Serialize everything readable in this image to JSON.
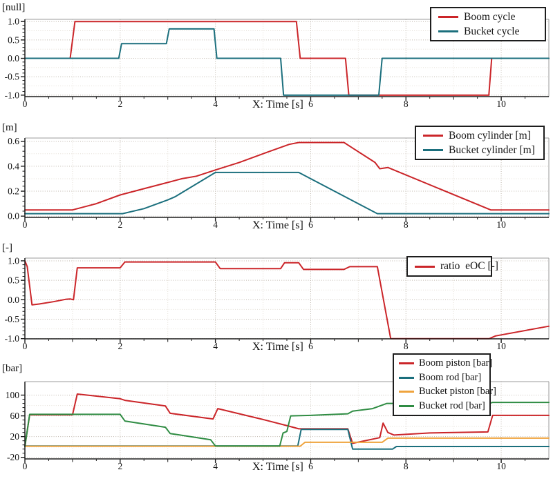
{
  "colors": {
    "red": "#cb2529",
    "teal": "#1b6f7d",
    "orange": "#efa33d",
    "green": "#2f8c43",
    "grid_major": "#c0b8ae",
    "grid_minor": "#e5e0d8",
    "frame": "#9b9b9b",
    "axis": "#1c1c1c",
    "tick_text": "#111111"
  },
  "chart_data": [
    {
      "type": "line",
      "title": "",
      "ylabel": "[null]",
      "xlabel": "X: Time [s]",
      "xlim": [
        0,
        11
      ],
      "ylim": [
        -1,
        1
      ],
      "xticks": [
        0,
        2,
        4,
        6,
        8,
        10
      ],
      "yticks": [
        -1,
        -0.5,
        0,
        0.5,
        1
      ],
      "grid": true,
      "legend_position": "top-right",
      "series": [
        {
          "name": "Boom cycle",
          "color": "#cb2529",
          "points": [
            [
              0,
              0
            ],
            [
              0.95,
              0
            ],
            [
              1.05,
              1
            ],
            [
              5.7,
              1
            ],
            [
              5.78,
              0
            ],
            [
              6.73,
              0
            ],
            [
              6.8,
              -1
            ],
            [
              9.74,
              -1
            ],
            [
              9.8,
              0
            ],
            [
              11,
              0
            ]
          ]
        },
        {
          "name": "Bucket cycle",
          "color": "#1b6f7d",
          "points": [
            [
              0,
              0
            ],
            [
              1.97,
              0
            ],
            [
              2.03,
              0.4
            ],
            [
              2.97,
              0.4
            ],
            [
              3.03,
              0.8
            ],
            [
              3.97,
              0.8
            ],
            [
              4.03,
              0
            ],
            [
              5.37,
              0
            ],
            [
              5.43,
              -1
            ],
            [
              7.43,
              -1
            ],
            [
              7.5,
              0
            ],
            [
              11,
              0
            ]
          ]
        }
      ]
    },
    {
      "type": "line",
      "title": "",
      "ylabel": "[m]",
      "xlabel": "X: Time [s]",
      "xlim": [
        0,
        11
      ],
      "ylim": [
        0,
        0.6
      ],
      "xticks": [
        0,
        2,
        4,
        6,
        8,
        10
      ],
      "yticks": [
        0,
        0.2,
        0.4,
        0.6
      ],
      "grid": true,
      "legend_position": "top-right",
      "series": [
        {
          "name": "Boom cylinder [m]",
          "color": "#cb2529",
          "points": [
            [
              0,
              0.05
            ],
            [
              1,
              0.05
            ],
            [
              1.5,
              0.1
            ],
            [
              2,
              0.17
            ],
            [
              2.5,
              0.22
            ],
            [
              3,
              0.27
            ],
            [
              3.3,
              0.3
            ],
            [
              3.6,
              0.32
            ],
            [
              4,
              0.37
            ],
            [
              4.5,
              0.43
            ],
            [
              5,
              0.5
            ],
            [
              5.55,
              0.575
            ],
            [
              5.75,
              0.59
            ],
            [
              6.7,
              0.59
            ],
            [
              7.35,
              0.43
            ],
            [
              7.45,
              0.38
            ],
            [
              7.62,
              0.39
            ],
            [
              9.78,
              0.05
            ],
            [
              11,
              0.05
            ]
          ]
        },
        {
          "name": "Bucket cylinder [m]",
          "color": "#1b6f7d",
          "points": [
            [
              0,
              0.02
            ],
            [
              2.05,
              0.02
            ],
            [
              2.5,
              0.06
            ],
            [
              3,
              0.13
            ],
            [
              3.15,
              0.155
            ],
            [
              4,
              0.35
            ],
            [
              5.75,
              0.35
            ],
            [
              7.4,
              0.02
            ],
            [
              11,
              0.02
            ]
          ]
        }
      ]
    },
    {
      "type": "line",
      "title": "",
      "ylabel": "[-]",
      "xlabel": "X: Time [s]",
      "xlim": [
        0,
        11
      ],
      "ylim": [
        -1,
        1
      ],
      "xticks": [
        0,
        2,
        4,
        6,
        8,
        10
      ],
      "yticks": [
        -1,
        -0.5,
        0,
        0.5,
        1
      ],
      "grid": true,
      "legend_position": "top-right",
      "series": [
        {
          "name": "ratio  eOC [-]",
          "color": "#cb2529",
          "points": [
            [
              0,
              1
            ],
            [
              0.05,
              0.85
            ],
            [
              0.15,
              -0.13
            ],
            [
              0.3,
              -0.11
            ],
            [
              0.6,
              -0.05
            ],
            [
              0.85,
              0.01
            ],
            [
              0.95,
              0.02
            ],
            [
              1.02,
              0
            ],
            [
              1.1,
              0.82
            ],
            [
              2,
              0.82
            ],
            [
              2.1,
              0.97
            ],
            [
              4,
              0.97
            ],
            [
              4.1,
              0.8
            ],
            [
              5.37,
              0.8
            ],
            [
              5.45,
              0.95
            ],
            [
              5.75,
              0.95
            ],
            [
              5.85,
              0.78
            ],
            [
              6.7,
              0.78
            ],
            [
              6.82,
              0.85
            ],
            [
              7.4,
              0.85
            ],
            [
              7.68,
              -1
            ],
            [
              9.75,
              -1
            ],
            [
              9.88,
              -0.93
            ],
            [
              11,
              -0.68
            ]
          ]
        }
      ]
    },
    {
      "type": "line",
      "title": "",
      "ylabel": "[bar]",
      "xlabel": "X: Time [s]",
      "xlim": [
        0,
        11
      ],
      "ylim": [
        -20,
        110
      ],
      "xticks": [
        0,
        2,
        4,
        6,
        8,
        10
      ],
      "yticks": [
        -20,
        20,
        60,
        100
      ],
      "grid": true,
      "legend_position": "top-right",
      "series": [
        {
          "name": "Boom piston [bar]",
          "color": "#cb2529",
          "points": [
            [
              0,
              1
            ],
            [
              0.1,
              62
            ],
            [
              1,
              62
            ],
            [
              1.1,
              102
            ],
            [
              2,
              93
            ],
            [
              2.1,
              90
            ],
            [
              2.95,
              79
            ],
            [
              3.05,
              65
            ],
            [
              3.95,
              54
            ],
            [
              4.05,
              74
            ],
            [
              5,
              53
            ],
            [
              5.55,
              40
            ],
            [
              5.75,
              35
            ],
            [
              6.78,
              35
            ],
            [
              6.88,
              7
            ],
            [
              7.45,
              18
            ],
            [
              7.52,
              46
            ],
            [
              7.62,
              28
            ],
            [
              7.75,
              23
            ],
            [
              8.5,
              27
            ],
            [
              9.72,
              29
            ],
            [
              9.82,
              61
            ],
            [
              11,
              61
            ]
          ]
        },
        {
          "name": "Boom rod [bar]",
          "color": "#1b6f7d",
          "points": [
            [
              0,
              2
            ],
            [
              5.73,
              2
            ],
            [
              5.8,
              34
            ],
            [
              6.78,
              34
            ],
            [
              6.88,
              -4
            ],
            [
              7.72,
              -4
            ],
            [
              7.8,
              1
            ],
            [
              11,
              1
            ]
          ]
        },
        {
          "name": "Bucket piston [bar]",
          "color": "#efa33d",
          "points": [
            [
              0,
              1.5
            ],
            [
              5.78,
              1.5
            ],
            [
              5.88,
              9
            ],
            [
              7.5,
              9
            ],
            [
              7.62,
              17
            ],
            [
              11,
              17
            ]
          ]
        },
        {
          "name": "Bucket rod [bar]",
          "color": "#2f8c43",
          "points": [
            [
              0,
              1
            ],
            [
              0.1,
              63
            ],
            [
              2,
              63
            ],
            [
              2.1,
              50
            ],
            [
              2.95,
              38
            ],
            [
              3.05,
              26
            ],
            [
              3.9,
              14
            ],
            [
              4,
              2
            ],
            [
              5.35,
              2
            ],
            [
              5.42,
              27
            ],
            [
              5.5,
              30
            ],
            [
              5.58,
              60
            ],
            [
              6,
              61
            ],
            [
              6.78,
              64
            ],
            [
              6.88,
              69
            ],
            [
              7.3,
              74
            ],
            [
              7.6,
              84
            ],
            [
              9.75,
              84
            ],
            [
              9.82,
              86
            ],
            [
              11,
              86
            ]
          ]
        }
      ]
    }
  ]
}
